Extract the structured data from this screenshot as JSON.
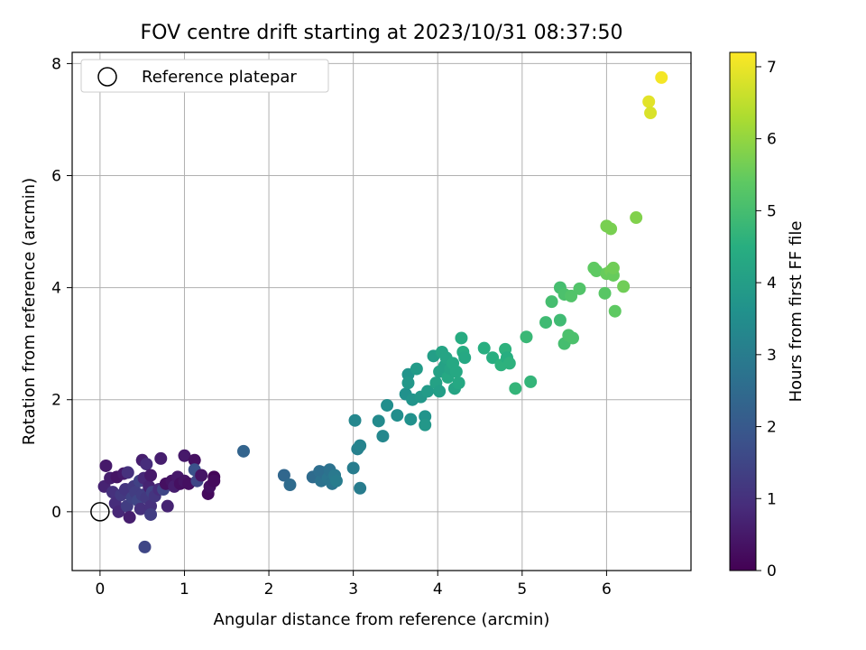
{
  "chart_data": {
    "type": "scatter",
    "title": "FOV centre drift starting at 2023/10/31 08:37:50",
    "xlabel": "Angular distance from reference (arcmin)",
    "ylabel": "Rotation from reference (arcmin)",
    "xlim": [
      -0.33,
      7.0
    ],
    "ylim": [
      -1.05,
      8.2
    ],
    "xticks": [
      0,
      1,
      2,
      3,
      4,
      5,
      6
    ],
    "yticks": [
      0,
      2,
      4,
      6,
      8
    ],
    "grid": true,
    "legend": {
      "location": "top-left",
      "entries": [
        "Reference platepar"
      ]
    },
    "reference_point": {
      "x": 0,
      "y": 0,
      "label": "Reference platepar"
    },
    "colorbar": {
      "label": "Hours from first FF file",
      "range": [
        0,
        7.2
      ],
      "ticks": [
        0,
        1,
        2,
        3,
        4,
        5,
        6,
        7
      ],
      "colormap": "viridis"
    },
    "points": [
      {
        "x": 0.05,
        "y": 0.45,
        "t": 0.7
      },
      {
        "x": 0.07,
        "y": 0.82,
        "t": 0.5
      },
      {
        "x": 0.12,
        "y": 0.6,
        "t": 0.6
      },
      {
        "x": 0.15,
        "y": 0.35,
        "t": 1.0
      },
      {
        "x": 0.18,
        "y": 0.15,
        "t": 0.9
      },
      {
        "x": 0.2,
        "y": 0.62,
        "t": 0.4
      },
      {
        "x": 0.22,
        "y": 0.0,
        "t": 0.8
      },
      {
        "x": 0.25,
        "y": 0.3,
        "t": 1.2
      },
      {
        "x": 0.28,
        "y": 0.68,
        "t": 0.5
      },
      {
        "x": 0.3,
        "y": 0.4,
        "t": 1.1
      },
      {
        "x": 0.32,
        "y": 0.1,
        "t": 1.3
      },
      {
        "x": 0.33,
        "y": 0.7,
        "t": 1.0
      },
      {
        "x": 0.35,
        "y": -0.1,
        "t": 0.6
      },
      {
        "x": 0.38,
        "y": 0.25,
        "t": 1.4
      },
      {
        "x": 0.4,
        "y": 0.45,
        "t": 1.2
      },
      {
        "x": 0.42,
        "y": 0.35,
        "t": 1.3
      },
      {
        "x": 0.45,
        "y": 0.2,
        "t": 1.5
      },
      {
        "x": 0.47,
        "y": 0.55,
        "t": 1.4
      },
      {
        "x": 0.48,
        "y": 0.05,
        "t": 1.0
      },
      {
        "x": 0.5,
        "y": 0.92,
        "t": 0.6
      },
      {
        "x": 0.5,
        "y": 0.3,
        "t": 1.3
      },
      {
        "x": 0.52,
        "y": 0.6,
        "t": 0.8
      },
      {
        "x": 0.53,
        "y": -0.63,
        "t": 1.5
      },
      {
        "x": 0.55,
        "y": 0.85,
        "t": 0.9
      },
      {
        "x": 0.55,
        "y": 0.25,
        "t": 1.2
      },
      {
        "x": 0.58,
        "y": 0.45,
        "t": 0.7
      },
      {
        "x": 0.6,
        "y": 0.1,
        "t": 1.0
      },
      {
        "x": 0.6,
        "y": 0.65,
        "t": 0.5
      },
      {
        "x": 0.62,
        "y": 0.35,
        "t": 1.4
      },
      {
        "x": 0.6,
        "y": -0.05,
        "t": 1.3
      },
      {
        "x": 0.65,
        "y": 0.28,
        "t": 1.1
      },
      {
        "x": 0.7,
        "y": 0.4,
        "t": 0.9
      },
      {
        "x": 0.72,
        "y": 0.95,
        "t": 0.6
      },
      {
        "x": 0.75,
        "y": 0.4,
        "t": 1.5
      },
      {
        "x": 0.78,
        "y": 0.5,
        "t": 0.3
      },
      {
        "x": 0.8,
        "y": 0.1,
        "t": 0.7
      },
      {
        "x": 0.85,
        "y": 0.55,
        "t": 0.4
      },
      {
        "x": 0.88,
        "y": 0.45,
        "t": 0.6
      },
      {
        "x": 0.92,
        "y": 0.62,
        "t": 0.5
      },
      {
        "x": 0.95,
        "y": 0.5,
        "t": 0.3
      },
      {
        "x": 1.0,
        "y": 1.0,
        "t": 0.5
      },
      {
        "x": 1.0,
        "y": 0.55,
        "t": 0.4
      },
      {
        "x": 1.05,
        "y": 0.5,
        "t": 0.3
      },
      {
        "x": 1.12,
        "y": 0.92,
        "t": 0.3
      },
      {
        "x": 1.12,
        "y": 0.75,
        "t": 1.8
      },
      {
        "x": 1.15,
        "y": 0.55,
        "t": 1.5
      },
      {
        "x": 1.2,
        "y": 0.65,
        "t": 0.4
      },
      {
        "x": 1.28,
        "y": 0.32,
        "t": 0.2
      },
      {
        "x": 1.3,
        "y": 0.45,
        "t": 0.3
      },
      {
        "x": 1.35,
        "y": 0.62,
        "t": 0.1
      },
      {
        "x": 1.35,
        "y": 0.55,
        "t": 0.2
      },
      {
        "x": 1.7,
        "y": 1.08,
        "t": 2.3
      },
      {
        "x": 2.18,
        "y": 0.65,
        "t": 2.4
      },
      {
        "x": 2.25,
        "y": 0.48,
        "t": 2.5
      },
      {
        "x": 2.52,
        "y": 0.62,
        "t": 2.5
      },
      {
        "x": 2.6,
        "y": 0.72,
        "t": 2.6
      },
      {
        "x": 2.62,
        "y": 0.55,
        "t": 2.7
      },
      {
        "x": 2.65,
        "y": 0.7,
        "t": 2.6
      },
      {
        "x": 2.7,
        "y": 0.6,
        "t": 2.8
      },
      {
        "x": 2.72,
        "y": 0.75,
        "t": 2.7
      },
      {
        "x": 2.75,
        "y": 0.5,
        "t": 2.8
      },
      {
        "x": 2.78,
        "y": 0.65,
        "t": 2.9
      },
      {
        "x": 2.8,
        "y": 0.55,
        "t": 3.0
      },
      {
        "x": 3.0,
        "y": 0.78,
        "t": 3.0
      },
      {
        "x": 3.02,
        "y": 1.63,
        "t": 3.3
      },
      {
        "x": 3.05,
        "y": 1.12,
        "t": 3.1
      },
      {
        "x": 3.08,
        "y": 1.18,
        "t": 3.2
      },
      {
        "x": 3.08,
        "y": 0.42,
        "t": 3.0
      },
      {
        "x": 3.3,
        "y": 1.62,
        "t": 3.4
      },
      {
        "x": 3.35,
        "y": 1.35,
        "t": 3.3
      },
      {
        "x": 3.4,
        "y": 1.9,
        "t": 3.5
      },
      {
        "x": 3.52,
        "y": 1.72,
        "t": 3.5
      },
      {
        "x": 3.62,
        "y": 2.1,
        "t": 3.6
      },
      {
        "x": 3.65,
        "y": 2.45,
        "t": 3.7
      },
      {
        "x": 3.65,
        "y": 2.3,
        "t": 3.8
      },
      {
        "x": 3.68,
        "y": 1.65,
        "t": 3.6
      },
      {
        "x": 3.7,
        "y": 2.0,
        "t": 3.7
      },
      {
        "x": 3.75,
        "y": 2.55,
        "t": 3.9
      },
      {
        "x": 3.8,
        "y": 2.05,
        "t": 3.8
      },
      {
        "x": 3.85,
        "y": 1.7,
        "t": 3.7
      },
      {
        "x": 3.85,
        "y": 1.55,
        "t": 3.8
      },
      {
        "x": 3.88,
        "y": 2.15,
        "t": 3.9
      },
      {
        "x": 3.95,
        "y": 2.78,
        "t": 4.0
      },
      {
        "x": 3.98,
        "y": 2.3,
        "t": 4.1
      },
      {
        "x": 4.02,
        "y": 2.15,
        "t": 4.0
      },
      {
        "x": 4.02,
        "y": 2.5,
        "t": 4.1
      },
      {
        "x": 4.05,
        "y": 2.85,
        "t": 4.2
      },
      {
        "x": 4.08,
        "y": 2.6,
        "t": 4.1
      },
      {
        "x": 4.1,
        "y": 2.75,
        "t": 4.2
      },
      {
        "x": 4.12,
        "y": 2.4,
        "t": 4.3
      },
      {
        "x": 4.15,
        "y": 2.55,
        "t": 4.2
      },
      {
        "x": 4.18,
        "y": 2.65,
        "t": 4.3
      },
      {
        "x": 4.2,
        "y": 2.2,
        "t": 4.2
      },
      {
        "x": 4.22,
        "y": 2.5,
        "t": 4.3
      },
      {
        "x": 4.25,
        "y": 2.3,
        "t": 4.3
      },
      {
        "x": 4.28,
        "y": 3.1,
        "t": 4.4
      },
      {
        "x": 4.3,
        "y": 2.85,
        "t": 4.4
      },
      {
        "x": 4.32,
        "y": 2.75,
        "t": 4.3
      },
      {
        "x": 4.55,
        "y": 2.92,
        "t": 4.5
      },
      {
        "x": 4.65,
        "y": 2.75,
        "t": 4.5
      },
      {
        "x": 4.75,
        "y": 2.62,
        "t": 4.6
      },
      {
        "x": 4.8,
        "y": 2.9,
        "t": 4.6
      },
      {
        "x": 4.82,
        "y": 2.75,
        "t": 4.5
      },
      {
        "x": 4.85,
        "y": 2.65,
        "t": 4.6
      },
      {
        "x": 4.92,
        "y": 2.2,
        "t": 4.7
      },
      {
        "x": 5.05,
        "y": 3.12,
        "t": 4.8
      },
      {
        "x": 5.1,
        "y": 2.32,
        "t": 4.7
      },
      {
        "x": 5.28,
        "y": 3.38,
        "t": 4.9
      },
      {
        "x": 5.35,
        "y": 3.75,
        "t": 5.0
      },
      {
        "x": 5.45,
        "y": 4.0,
        "t": 5.0
      },
      {
        "x": 5.45,
        "y": 3.42,
        "t": 4.9
      },
      {
        "x": 5.5,
        "y": 3.0,
        "t": 5.0
      },
      {
        "x": 5.5,
        "y": 3.88,
        "t": 5.1
      },
      {
        "x": 5.55,
        "y": 3.15,
        "t": 5.1
      },
      {
        "x": 5.58,
        "y": 3.85,
        "t": 5.2
      },
      {
        "x": 5.6,
        "y": 3.1,
        "t": 5.1
      },
      {
        "x": 5.68,
        "y": 3.98,
        "t": 5.2
      },
      {
        "x": 5.85,
        "y": 4.35,
        "t": 5.4
      },
      {
        "x": 5.88,
        "y": 4.3,
        "t": 5.4
      },
      {
        "x": 5.98,
        "y": 3.9,
        "t": 5.3
      },
      {
        "x": 6.0,
        "y": 5.1,
        "t": 5.7
      },
      {
        "x": 6.05,
        "y": 5.05,
        "t": 5.7
      },
      {
        "x": 6.0,
        "y": 4.25,
        "t": 5.5
      },
      {
        "x": 6.05,
        "y": 4.3,
        "t": 5.6
      },
      {
        "x": 6.08,
        "y": 4.22,
        "t": 5.5
      },
      {
        "x": 6.1,
        "y": 3.58,
        "t": 5.4
      },
      {
        "x": 6.08,
        "y": 4.35,
        "t": 5.6
      },
      {
        "x": 6.2,
        "y": 4.02,
        "t": 5.6
      },
      {
        "x": 6.35,
        "y": 5.25,
        "t": 5.8
      },
      {
        "x": 6.5,
        "y": 7.32,
        "t": 6.9
      },
      {
        "x": 6.52,
        "y": 7.12,
        "t": 6.8
      },
      {
        "x": 6.65,
        "y": 7.75,
        "t": 7.1
      }
    ]
  }
}
